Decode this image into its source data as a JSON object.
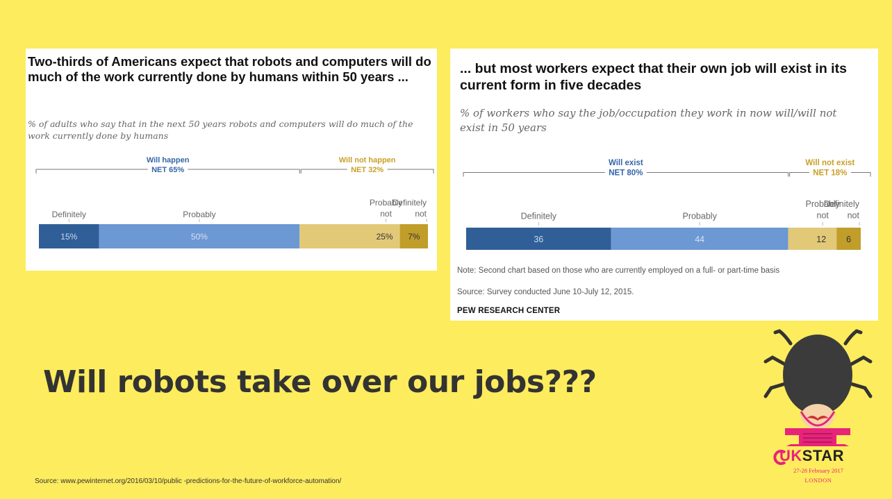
{
  "slide": {
    "title": "Will robots take over our jobs???",
    "source": "Source: www.pewinternet.org/2016/03/10/public -predictions-for-the-future-of-workforce-automation/"
  },
  "logo": {
    "brand_uk": "UK",
    "brand_star": "STAR",
    "date": "27-28 February 2017",
    "city": "LONDON"
  },
  "right_notes": {
    "note": "Note: Second chart based on those who are currently employed on a full- or part-time basis",
    "source": "Source: Survey conducted June 10-July 12, 2015.",
    "brand": "PEW RESEARCH CENTER"
  },
  "colors": {
    "definitely_yes": "#2f5f96",
    "probably_yes": "#6c98d3",
    "probably_not": "#e2c978",
    "definitely_not": "#c19d2a",
    "blue_label": "#3466a8",
    "gold_label": "#c8a028"
  },
  "chart_data": [
    {
      "type": "bar",
      "orientation": "horizontal-stacked",
      "title": "Two-thirds of Americans expect that robots and computers will do much of the work currently done by humans within 50 years ...",
      "subtitle": "% of adults who say that in the next 50 years robots and computers will do much of the work currently done by humans",
      "groups": [
        {
          "label": "Will happen",
          "net": "NET 65%"
        },
        {
          "label": "Will not happen",
          "net": "NET 32%"
        }
      ],
      "categories": [
        {
          "label": "Definitely",
          "value": 15,
          "display": "15%"
        },
        {
          "label": "Probably",
          "value": 50,
          "display": "50%"
        },
        {
          "label": "Probably not",
          "value": 25,
          "display": "25%"
        },
        {
          "label": "Definitely not",
          "value": 7,
          "display": "7%"
        }
      ]
    },
    {
      "type": "bar",
      "orientation": "horizontal-stacked",
      "title": "... but most workers expect that their own job will exist in its current form in five decades",
      "subtitle": "% of workers who say the job/occupation they work in now will/will not exist in 50 years",
      "groups": [
        {
          "label": "Will exist",
          "net": "NET 80%"
        },
        {
          "label": "Will not exist",
          "net": "NET 18%"
        }
      ],
      "categories": [
        {
          "label": "Definitely",
          "value": 36,
          "display": "36"
        },
        {
          "label": "Probably",
          "value": 44,
          "display": "44"
        },
        {
          "label": "Probably not",
          "value": 12,
          "display": "12"
        },
        {
          "label": "Definitely not",
          "value": 6,
          "display": "6"
        }
      ]
    }
  ]
}
